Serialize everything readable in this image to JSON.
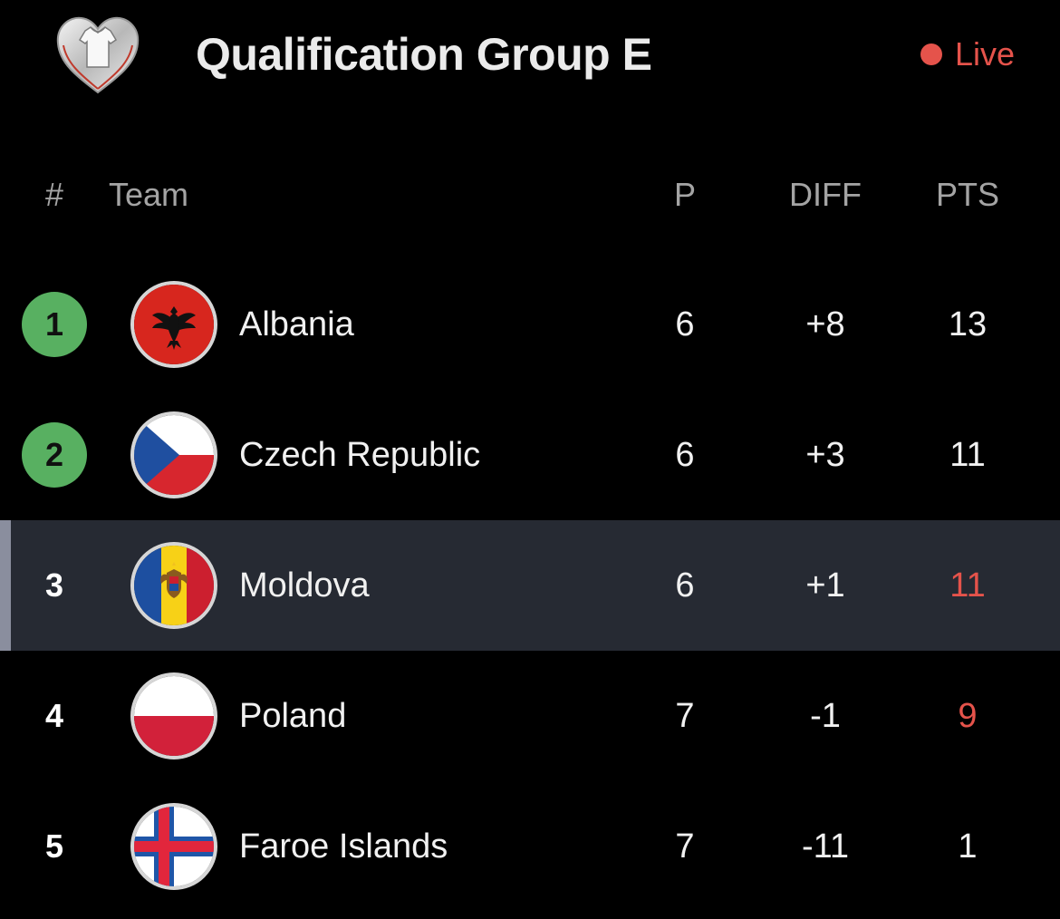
{
  "header": {
    "title": "Qualification Group E",
    "live_label": "Live",
    "live_color": "#e5534b",
    "logo_icon": "euro-qualifiers-trophy-icon"
  },
  "columns": {
    "rank": "#",
    "team": "Team",
    "played": "P",
    "diff": "DIFF",
    "points": "PTS"
  },
  "rows": [
    {
      "rank": "1",
      "team": "Albania",
      "played": "6",
      "diff": "+8",
      "points": "13",
      "flag_icon": "albania-flag-icon",
      "qualified": true,
      "highlight": false,
      "points_red": false
    },
    {
      "rank": "2",
      "team": "Czech Republic",
      "played": "6",
      "diff": "+3",
      "points": "11",
      "flag_icon": "czech-republic-flag-icon",
      "qualified": true,
      "highlight": false,
      "points_red": false
    },
    {
      "rank": "3",
      "team": "Moldova",
      "played": "6",
      "diff": "+1",
      "points": "11",
      "flag_icon": "moldova-flag-icon",
      "qualified": false,
      "highlight": true,
      "points_red": true
    },
    {
      "rank": "4",
      "team": "Poland",
      "played": "7",
      "diff": "-1",
      "points": "9",
      "flag_icon": "poland-flag-icon",
      "qualified": false,
      "highlight": false,
      "points_red": true
    },
    {
      "rank": "5",
      "team": "Faroe Islands",
      "played": "7",
      "diff": "-11",
      "points": "1",
      "flag_icon": "faroe-islands-flag-icon",
      "qualified": false,
      "highlight": false,
      "points_red": false
    }
  ],
  "colors": {
    "qualified_badge": "#58b061",
    "highlight_row": "#262a33",
    "highlight_bar": "#8a8e9e",
    "points_red": "#e5534b"
  }
}
